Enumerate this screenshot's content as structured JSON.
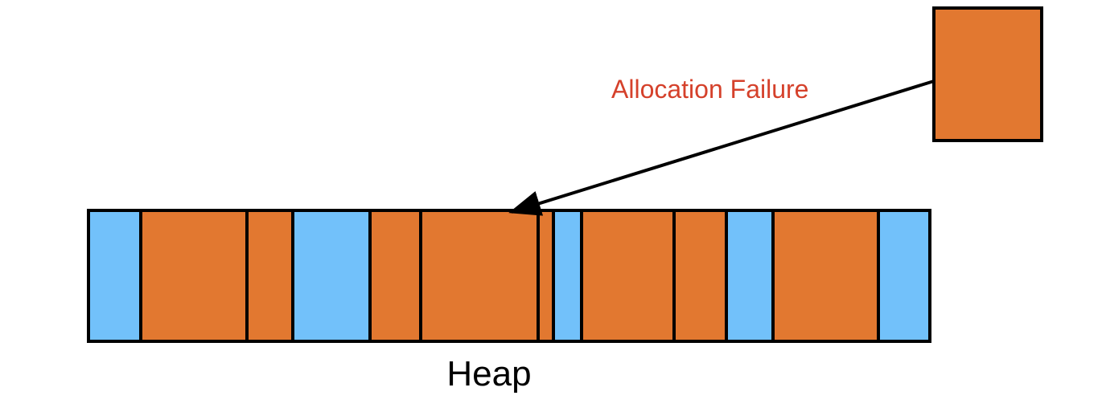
{
  "diagram": {
    "allocation_label": "Allocation Failure",
    "heap_label": "Heap",
    "colors": {
      "used": "#E27830",
      "free": "#72C1FA",
      "outline": "#000000",
      "arrow": "#000000",
      "failure_text": "#D5412B",
      "heap_text": "#000000"
    },
    "heap_blocks": [
      {
        "state": "free"
      },
      {
        "state": "used"
      },
      {
        "state": "used"
      },
      {
        "state": "free"
      },
      {
        "state": "used"
      },
      {
        "state": "used"
      },
      {
        "state": "used"
      },
      {
        "state": "free"
      },
      {
        "state": "used"
      },
      {
        "state": "used"
      },
      {
        "state": "free"
      },
      {
        "state": "used"
      },
      {
        "state": "free"
      }
    ],
    "incoming_block": {
      "state": "used"
    }
  }
}
